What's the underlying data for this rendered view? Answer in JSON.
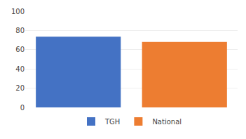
{
  "chart_data": {
    "type": "bar",
    "categories": [
      "TGH",
      "National"
    ],
    "values": [
      73.6,
      68.0
    ],
    "colors": [
      "#4472C4",
      "#ED7D31"
    ],
    "ylim": [
      0,
      100
    ],
    "yticks": [
      0,
      20,
      40,
      60,
      80,
      100
    ],
    "grid": true,
    "legend": "bottom",
    "tick_labels": "y"
  }
}
